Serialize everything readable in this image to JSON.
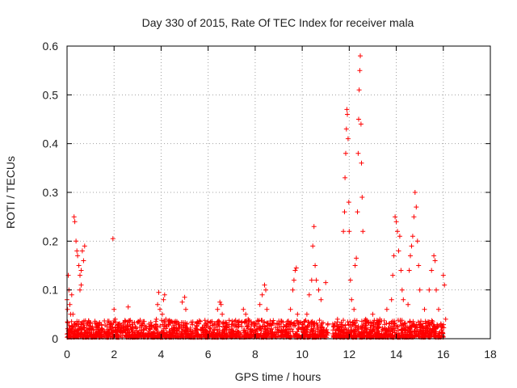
{
  "chart_data": {
    "type": "scatter",
    "title": "Day 330 of 2015, Rate Of TEC Index for receiver mala",
    "xlabel": "GPS time / hours",
    "ylabel": "ROTI / TECUs",
    "xlim": [
      0,
      18
    ],
    "ylim": [
      0,
      0.6
    ],
    "x_ticks": [
      0,
      2,
      4,
      6,
      8,
      10,
      12,
      14,
      16,
      18
    ],
    "x_tick_labels": [
      "0",
      "2",
      "4",
      "6",
      "8",
      "10",
      "12",
      "14",
      "16",
      "18"
    ],
    "y_ticks": [
      0,
      0.1,
      0.2,
      0.3,
      0.4,
      0.5,
      0.6
    ],
    "y_tick_labels": [
      "0",
      "0.1",
      "0.2",
      "0.3",
      "0.4",
      "0.5",
      "0.6"
    ],
    "grid": true,
    "marker": "+",
    "marker_color": "#ff0000",
    "series": [
      {
        "name": "ROTI",
        "points": [
          [
            0.0,
            0.08
          ],
          [
            0.02,
            0.06
          ],
          [
            0.05,
            0.13
          ],
          [
            0.08,
            0.1
          ],
          [
            0.12,
            0.07
          ],
          [
            0.15,
            0.05
          ],
          [
            0.2,
            0.09
          ],
          [
            0.25,
            0.05
          ],
          [
            0.3,
            0.03
          ],
          [
            0.35,
            0.02
          ],
          [
            0.3,
            0.25
          ],
          [
            0.33,
            0.24
          ],
          [
            0.38,
            0.2
          ],
          [
            0.42,
            0.18
          ],
          [
            0.45,
            0.17
          ],
          [
            0.5,
            0.15
          ],
          [
            0.55,
            0.13
          ],
          [
            0.6,
            0.11
          ],
          [
            0.65,
            0.18
          ],
          [
            0.7,
            0.16
          ],
          [
            0.75,
            0.19
          ],
          [
            0.55,
            0.1
          ],
          [
            0.6,
            0.14
          ],
          [
            1.0,
            0.02
          ],
          [
            1.3,
            0.03
          ],
          [
            1.5,
            0.02
          ],
          [
            1.95,
            0.205
          ],
          [
            2.0,
            0.06
          ],
          [
            2.05,
            0.04
          ],
          [
            2.2,
            0.03
          ],
          [
            2.5,
            0.02
          ],
          [
            2.6,
            0.065
          ],
          [
            2.9,
            0.025
          ],
          [
            3.2,
            0.03
          ],
          [
            3.5,
            0.025
          ],
          [
            3.8,
            0.04
          ],
          [
            3.85,
            0.07
          ],
          [
            3.9,
            0.095
          ],
          [
            3.95,
            0.06
          ],
          [
            4.05,
            0.05
          ],
          [
            4.1,
            0.08
          ],
          [
            4.15,
            0.09
          ],
          [
            4.2,
            0.04
          ],
          [
            4.5,
            0.02
          ],
          [
            4.9,
            0.075
          ],
          [
            5.0,
            0.085
          ],
          [
            5.05,
            0.06
          ],
          [
            5.1,
            0.03
          ],
          [
            5.5,
            0.02
          ],
          [
            6.0,
            0.025
          ],
          [
            6.4,
            0.06
          ],
          [
            6.5,
            0.075
          ],
          [
            6.55,
            0.07
          ],
          [
            6.6,
            0.05
          ],
          [
            7.0,
            0.02
          ],
          [
            7.5,
            0.06
          ],
          [
            7.6,
            0.05
          ],
          [
            7.7,
            0.04
          ],
          [
            8.0,
            0.03
          ],
          [
            8.2,
            0.07
          ],
          [
            8.3,
            0.09
          ],
          [
            8.4,
            0.11
          ],
          [
            8.45,
            0.1
          ],
          [
            8.5,
            0.06
          ],
          [
            9.0,
            0.03
          ],
          [
            9.5,
            0.06
          ],
          [
            9.6,
            0.1
          ],
          [
            9.65,
            0.12
          ],
          [
            9.7,
            0.14
          ],
          [
            9.75,
            0.145
          ],
          [
            9.8,
            0.05
          ],
          [
            10.2,
            0.05
          ],
          [
            10.3,
            0.09
          ],
          [
            10.4,
            0.12
          ],
          [
            10.45,
            0.19
          ],
          [
            10.5,
            0.23
          ],
          [
            10.55,
            0.15
          ],
          [
            10.6,
            0.12
          ],
          [
            10.7,
            0.1
          ],
          [
            10.8,
            0.08
          ],
          [
            11.0,
            0.115
          ],
          [
            11.3,
            0.03
          ],
          [
            11.5,
            0.04
          ],
          [
            11.75,
            0.22
          ],
          [
            11.8,
            0.26
          ],
          [
            11.82,
            0.33
          ],
          [
            11.85,
            0.38
          ],
          [
            11.88,
            0.43
          ],
          [
            11.9,
            0.47
          ],
          [
            11.92,
            0.46
          ],
          [
            11.95,
            0.41
          ],
          [
            11.98,
            0.28
          ],
          [
            12.0,
            0.22
          ],
          [
            12.05,
            0.12
          ],
          [
            12.1,
            0.08
          ],
          [
            12.2,
            0.06
          ],
          [
            12.25,
            0.15
          ],
          [
            12.3,
            0.165
          ],
          [
            12.35,
            0.26
          ],
          [
            12.38,
            0.38
          ],
          [
            12.4,
            0.45
          ],
          [
            12.42,
            0.51
          ],
          [
            12.45,
            0.55
          ],
          [
            12.47,
            0.58
          ],
          [
            12.5,
            0.44
          ],
          [
            12.52,
            0.36
          ],
          [
            12.55,
            0.29
          ],
          [
            12.58,
            0.22
          ],
          [
            12.7,
            0.04
          ],
          [
            13.0,
            0.05
          ],
          [
            13.3,
            0.04
          ],
          [
            13.6,
            0.06
          ],
          [
            13.8,
            0.08
          ],
          [
            13.85,
            0.13
          ],
          [
            13.9,
            0.17
          ],
          [
            13.95,
            0.25
          ],
          [
            14.0,
            0.24
          ],
          [
            14.05,
            0.22
          ],
          [
            14.1,
            0.18
          ],
          [
            14.15,
            0.21
          ],
          [
            14.2,
            0.14
          ],
          [
            14.25,
            0.1
          ],
          [
            14.3,
            0.08
          ],
          [
            14.5,
            0.07
          ],
          [
            14.55,
            0.14
          ],
          [
            14.6,
            0.17
          ],
          [
            14.65,
            0.19
          ],
          [
            14.7,
            0.21
          ],
          [
            14.75,
            0.25
          ],
          [
            14.8,
            0.3
          ],
          [
            14.85,
            0.27
          ],
          [
            14.9,
            0.2
          ],
          [
            14.95,
            0.15
          ],
          [
            15.0,
            0.1
          ],
          [
            15.2,
            0.06
          ],
          [
            15.4,
            0.1
          ],
          [
            15.5,
            0.14
          ],
          [
            15.6,
            0.17
          ],
          [
            15.65,
            0.16
          ],
          [
            15.7,
            0.1
          ],
          [
            15.8,
            0.06
          ],
          [
            16.0,
            0.13
          ],
          [
            16.05,
            0.11
          ],
          [
            16.1,
            0.04
          ]
        ]
      }
    ]
  }
}
